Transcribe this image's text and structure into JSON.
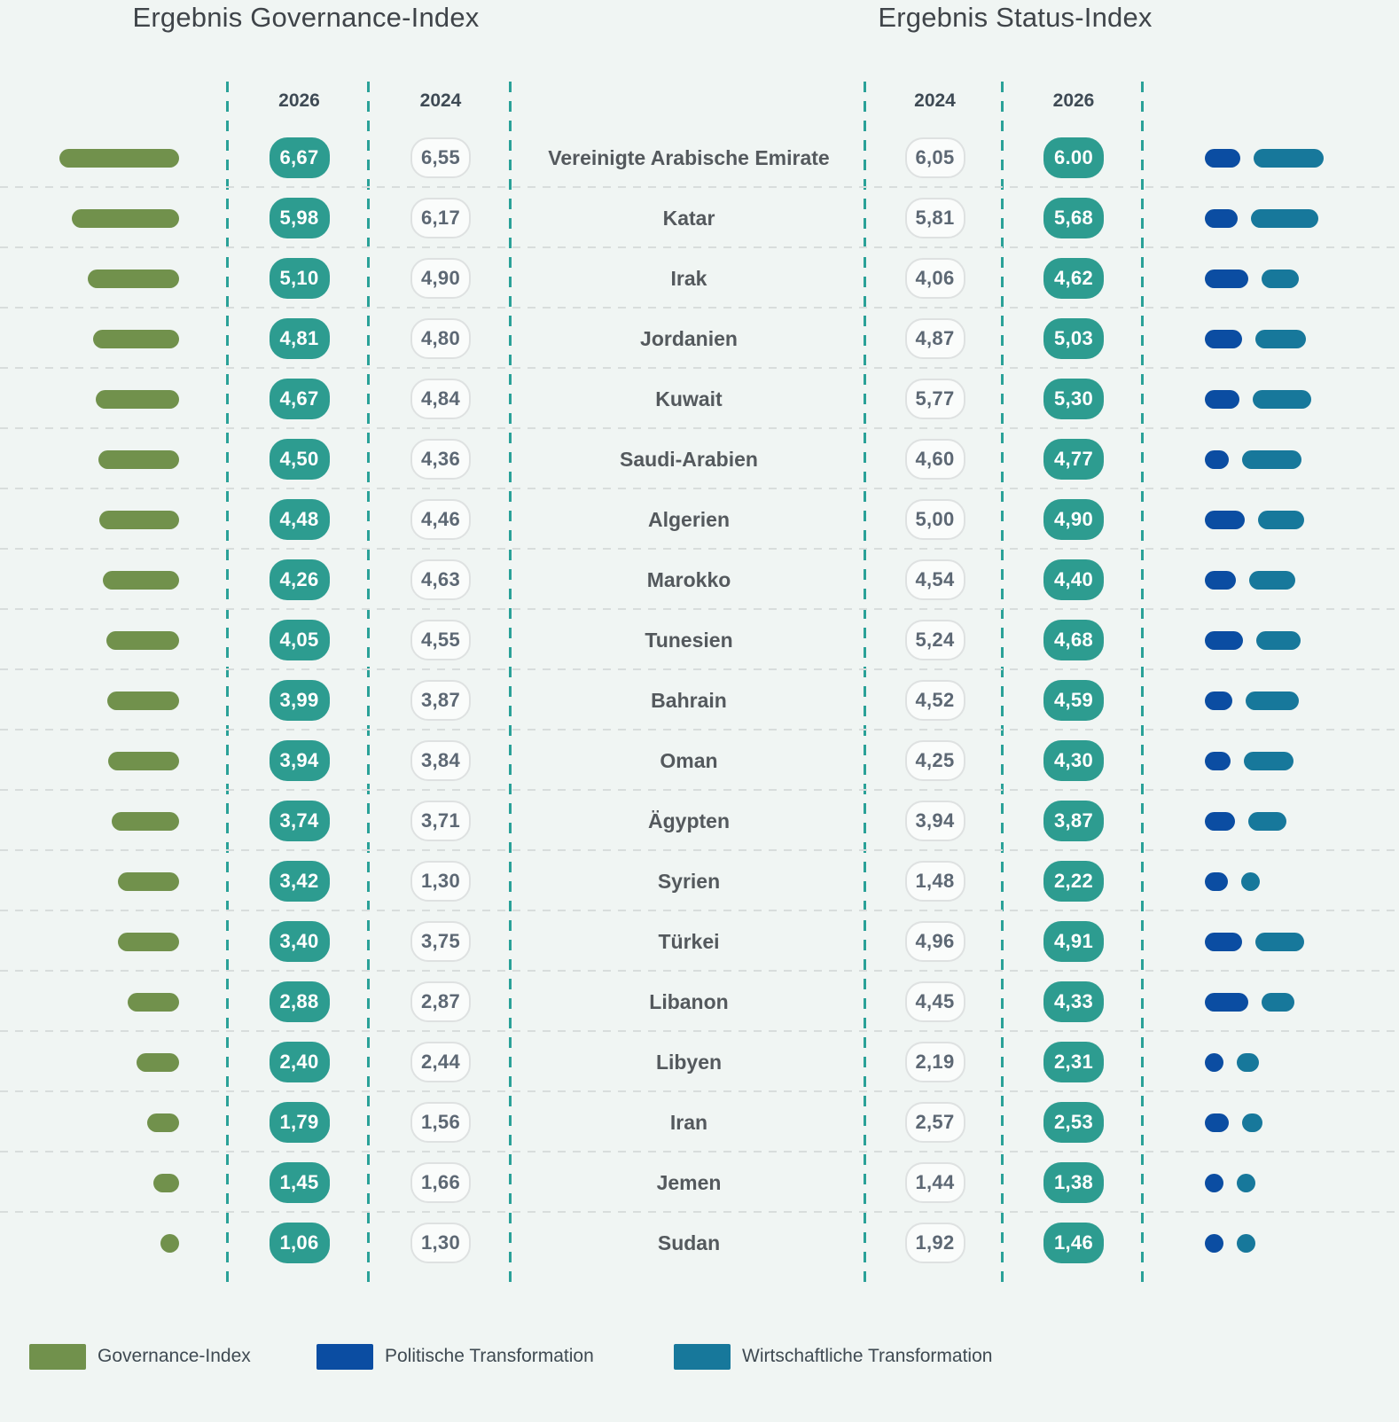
{
  "titles": {
    "left": "Ergebnis Governance-Index",
    "right": "Ergebnis Status-Index"
  },
  "columns": {
    "governance_2026": "2026",
    "governance_2024": "2024",
    "status_2024": "2024",
    "status_2026": "2026"
  },
  "legend": {
    "governance": "Governance-Index",
    "political": "Politische Transformation",
    "economic": "Wirtschaftliche Transformation"
  },
  "colors": {
    "background": "#f0f5f3",
    "governance_green": "#71914c",
    "political_blue": "#0b4da2",
    "economic_teal": "#17789b",
    "pill_teal": "#2d9c90",
    "dashed_guide_teal": "#2aa198"
  },
  "rows": [
    {
      "country": "Vereinigte Arabische Emirate",
      "gov_2026": "6,67",
      "gov_2024": "6,55",
      "status_2024": "6,05",
      "status_2026": "6.00",
      "gov_value": 6.67,
      "pol_value": 4.0,
      "eco_value": 8.0
    },
    {
      "country": "Katar",
      "gov_2026": "5,98",
      "gov_2024": "6,17",
      "status_2024": "5,81",
      "status_2026": "5,68",
      "gov_value": 5.98,
      "pol_value": 3.7,
      "eco_value": 7.7
    },
    {
      "country": "Irak",
      "gov_2026": "5,10",
      "gov_2024": "4,90",
      "status_2024": "4,06",
      "status_2026": "4,62",
      "gov_value": 5.1,
      "pol_value": 4.9,
      "eco_value": 4.3
    },
    {
      "country": "Jordanien",
      "gov_2026": "4,81",
      "gov_2024": "4,80",
      "status_2024": "4,87",
      "status_2026": "5,03",
      "gov_value": 4.81,
      "pol_value": 4.2,
      "eco_value": 5.8
    },
    {
      "country": "Kuwait",
      "gov_2026": "4,67",
      "gov_2024": "4,84",
      "status_2024": "5,77",
      "status_2026": "5,30",
      "gov_value": 4.67,
      "pol_value": 3.9,
      "eco_value": 6.7
    },
    {
      "country": "Saudi-Arabien",
      "gov_2026": "4,50",
      "gov_2024": "4,36",
      "status_2024": "4,60",
      "status_2026": "4,77",
      "gov_value": 4.5,
      "pol_value": 2.7,
      "eco_value": 6.8
    },
    {
      "country": "Algerien",
      "gov_2026": "4,48",
      "gov_2024": "4,46",
      "status_2024": "5,00",
      "status_2026": "4,90",
      "gov_value": 4.48,
      "pol_value": 4.5,
      "eco_value": 5.3
    },
    {
      "country": "Marokko",
      "gov_2026": "4,26",
      "gov_2024": "4,63",
      "status_2024": "4,54",
      "status_2026": "4,40",
      "gov_value": 4.26,
      "pol_value": 3.5,
      "eco_value": 5.3
    },
    {
      "country": "Tunesien",
      "gov_2026": "4,05",
      "gov_2024": "4,55",
      "status_2024": "5,24",
      "status_2026": "4,68",
      "gov_value": 4.05,
      "pol_value": 4.3,
      "eco_value": 5.1
    },
    {
      "country": "Bahrain",
      "gov_2026": "3,99",
      "gov_2024": "3,87",
      "status_2024": "4,52",
      "status_2026": "4,59",
      "gov_value": 3.99,
      "pol_value": 3.1,
      "eco_value": 6.1
    },
    {
      "country": "Oman",
      "gov_2026": "3,94",
      "gov_2024": "3,84",
      "status_2024": "4,25",
      "status_2026": "4,30",
      "gov_value": 3.94,
      "pol_value": 2.9,
      "eco_value": 5.7
    },
    {
      "country": "Ägypten",
      "gov_2026": "3,74",
      "gov_2024": "3,71",
      "status_2024": "3,94",
      "status_2026": "3,87",
      "gov_value": 3.74,
      "pol_value": 3.4,
      "eco_value": 4.4
    },
    {
      "country": "Syrien",
      "gov_2026": "3,42",
      "gov_2024": "1,30",
      "status_2024": "1,48",
      "status_2026": "2,22",
      "gov_value": 3.42,
      "pol_value": 2.6,
      "eco_value": 1.8
    },
    {
      "country": "Türkei",
      "gov_2026": "3,40",
      "gov_2024": "3,75",
      "status_2024": "4,96",
      "status_2026": "4,91",
      "gov_value": 3.4,
      "pol_value": 4.2,
      "eco_value": 5.6
    },
    {
      "country": "Libanon",
      "gov_2026": "2,88",
      "gov_2024": "2,87",
      "status_2024": "4,45",
      "status_2026": "4,33",
      "gov_value": 2.88,
      "pol_value": 4.9,
      "eco_value": 3.8
    },
    {
      "country": "Libyen",
      "gov_2026": "2,40",
      "gov_2024": "2,44",
      "status_2024": "2,19",
      "status_2026": "2,31",
      "gov_value": 2.4,
      "pol_value": 2.1,
      "eco_value": 2.5
    },
    {
      "country": "Iran",
      "gov_2026": "1,79",
      "gov_2024": "1,56",
      "status_2024": "2,57",
      "status_2026": "2,53",
      "gov_value": 1.79,
      "pol_value": 2.7,
      "eco_value": 2.4
    },
    {
      "country": "Jemen",
      "gov_2026": "1,45",
      "gov_2024": "1,66",
      "status_2024": "1,44",
      "status_2026": "1,38",
      "gov_value": 1.45,
      "pol_value": 1.4,
      "eco_value": 1.4
    },
    {
      "country": "Sudan",
      "gov_2026": "1,06",
      "gov_2024": "1,30",
      "status_2024": "1,92",
      "status_2026": "1,46",
      "gov_value": 1.06,
      "pol_value": 1.5,
      "eco_value": 1.4
    }
  ],
  "chart_data": {
    "type": "bar",
    "title_left": "Ergebnis Governance-Index",
    "title_right": "Ergebnis Status-Index",
    "categories": [
      "Vereinigte Arabische Emirate",
      "Katar",
      "Irak",
      "Jordanien",
      "Kuwait",
      "Saudi-Arabien",
      "Algerien",
      "Marokko",
      "Tunesien",
      "Bahrain",
      "Oman",
      "Ägypten",
      "Syrien",
      "Türkei",
      "Libanon",
      "Libyen",
      "Iran",
      "Jemen",
      "Sudan"
    ],
    "series": [
      {
        "name": "Governance-Index 2026",
        "values": [
          6.67,
          5.98,
          5.1,
          4.81,
          4.67,
          4.5,
          4.48,
          4.26,
          4.05,
          3.99,
          3.94,
          3.74,
          3.42,
          3.4,
          2.88,
          2.4,
          1.79,
          1.45,
          1.06
        ]
      },
      {
        "name": "Governance-Index 2024",
        "values": [
          6.55,
          6.17,
          4.9,
          4.8,
          4.84,
          4.36,
          4.46,
          4.63,
          4.55,
          3.87,
          3.84,
          3.71,
          1.3,
          3.75,
          2.87,
          2.44,
          1.56,
          1.66,
          1.3
        ]
      },
      {
        "name": "Status-Index 2024",
        "values": [
          6.05,
          5.81,
          4.06,
          4.87,
          5.77,
          4.6,
          5.0,
          4.54,
          5.24,
          4.52,
          4.25,
          3.94,
          1.48,
          4.96,
          4.45,
          2.19,
          2.57,
          1.44,
          1.92
        ]
      },
      {
        "name": "Status-Index 2026",
        "values": [
          6.0,
          5.68,
          4.62,
          5.03,
          5.3,
          4.77,
          4.9,
          4.4,
          4.68,
          4.59,
          4.3,
          3.87,
          2.22,
          4.91,
          4.33,
          2.31,
          2.53,
          1.38,
          1.46
        ]
      },
      {
        "name": "Politische Transformation (Balken, geschätzt)",
        "values": [
          4.0,
          3.7,
          4.9,
          4.2,
          3.9,
          2.7,
          4.5,
          3.5,
          4.3,
          3.1,
          2.9,
          3.4,
          2.6,
          4.2,
          4.9,
          2.1,
          2.7,
          1.4,
          1.5
        ]
      },
      {
        "name": "Wirtschaftliche Transformation (Balken, geschätzt)",
        "values": [
          8.0,
          7.7,
          4.3,
          5.8,
          6.7,
          6.8,
          5.3,
          5.3,
          5.1,
          6.1,
          5.7,
          4.4,
          1.8,
          5.6,
          3.8,
          2.5,
          2.4,
          1.4,
          1.4
        ]
      }
    ],
    "xlim": [
      0,
      10
    ],
    "grid": false,
    "legend_position": "bottom",
    "legend_entries": [
      "Governance-Index",
      "Politische Transformation",
      "Wirtschaftliche Transformation"
    ]
  }
}
